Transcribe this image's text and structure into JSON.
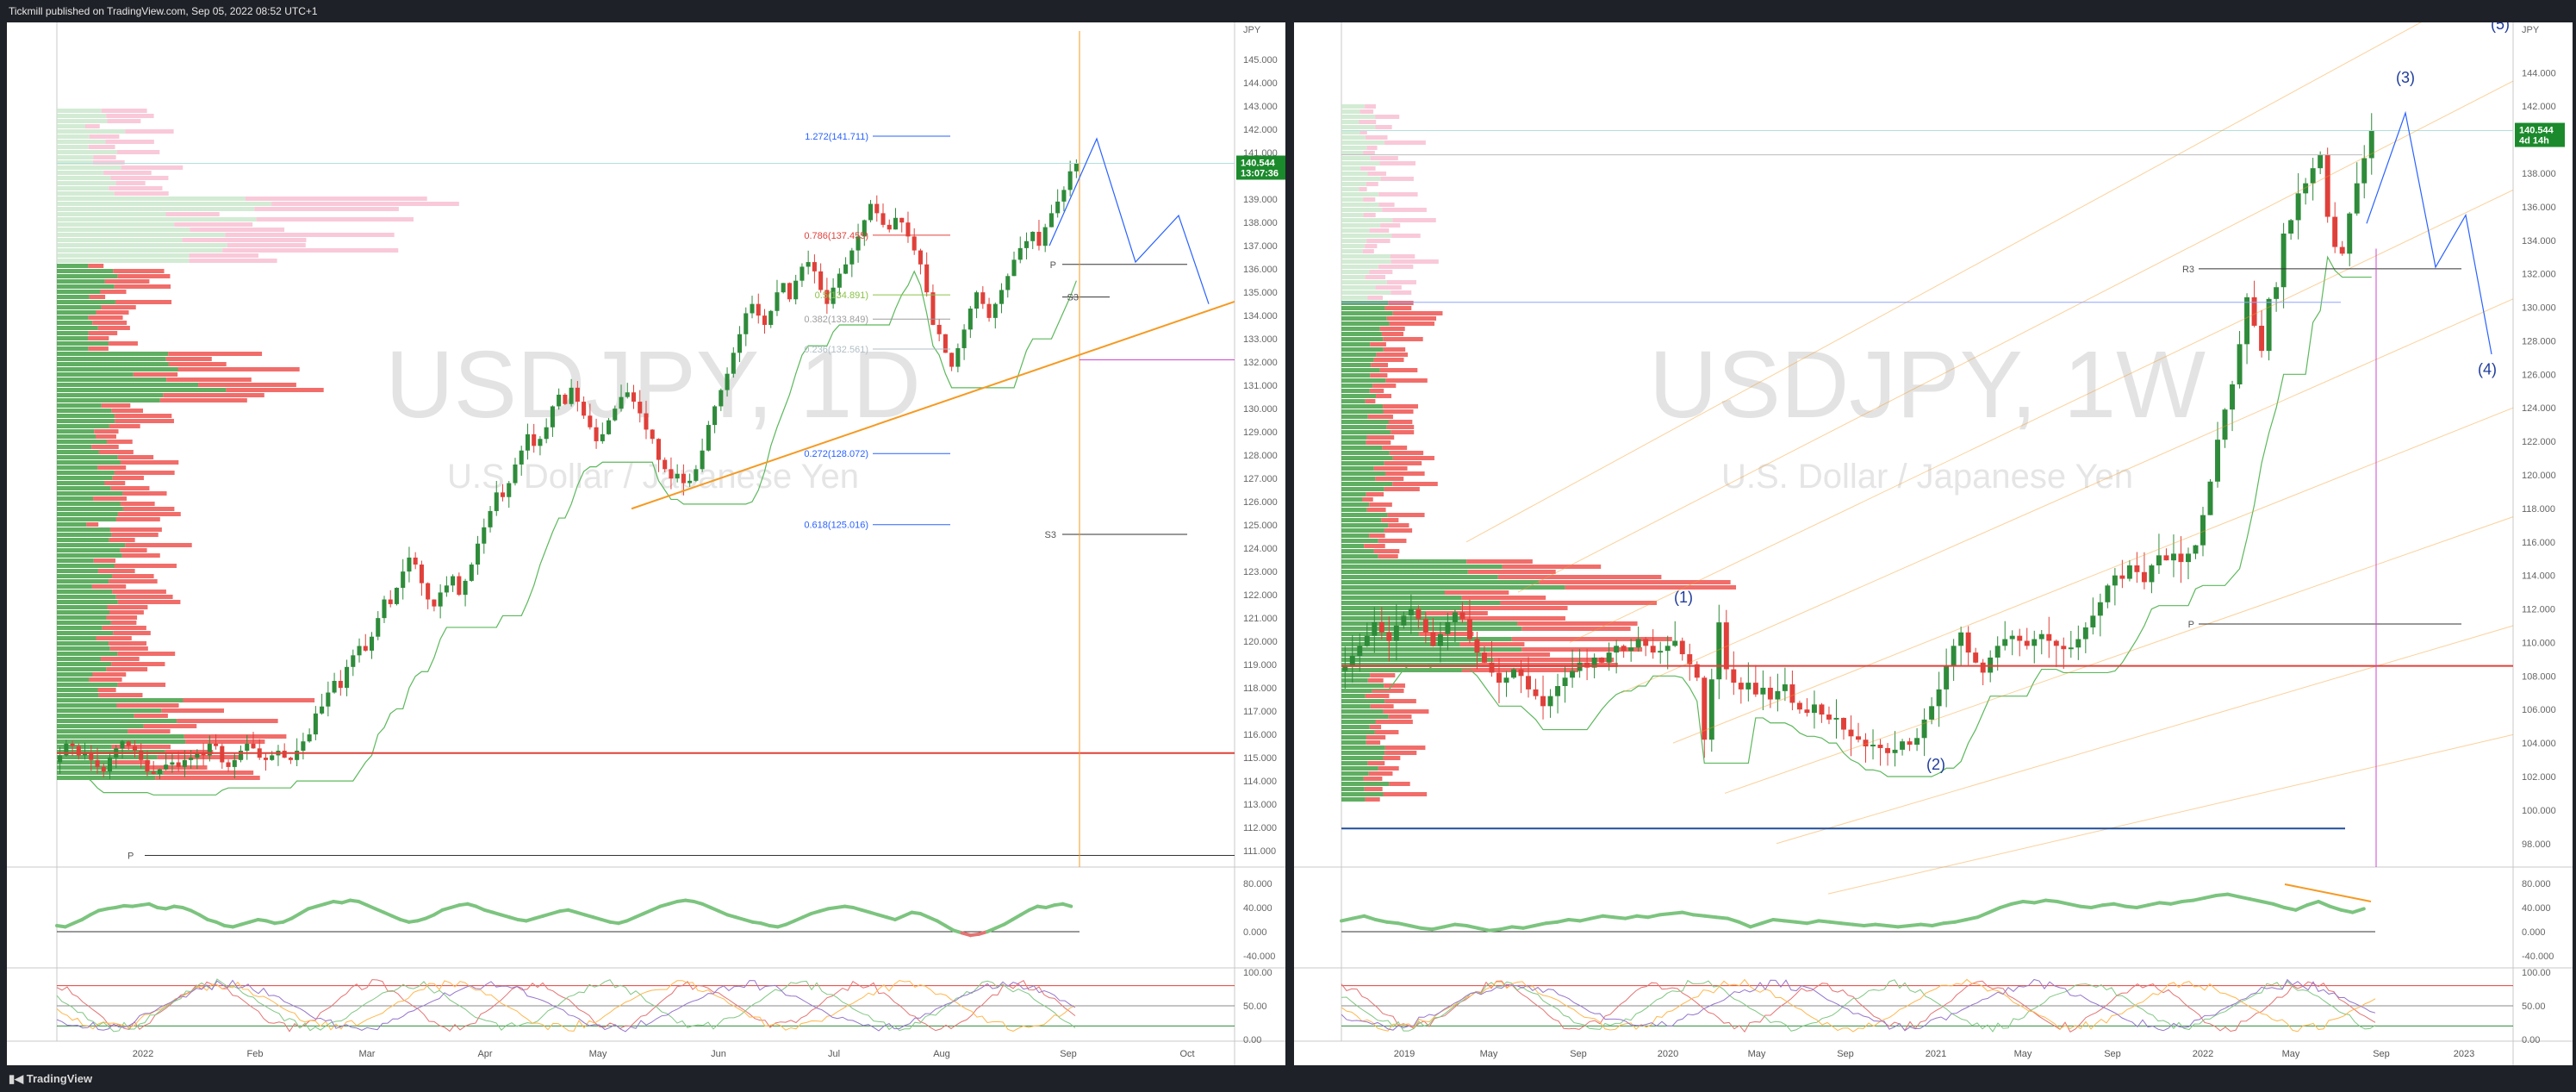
{
  "header": {
    "publish_text": "Tickmill published on TradingView.com, Sep 05, 2022 08:52 UTC+1"
  },
  "footer": {
    "logo_text": "TradingView"
  },
  "colors": {
    "up": "#2e8b3a",
    "down": "#e0403a",
    "accent_blue": "#2962ff",
    "orange": "#f59a23",
    "price_tag": "#1b8a2c"
  },
  "chart_data": [
    {
      "type": "candlestick",
      "symbol": "USDJPY, 1D",
      "description": "U.S. Dollar / Japanese Yen",
      "currency_label": "JPY",
      "last_price": "140.544",
      "countdown": "13:07:36",
      "ylim": [
        110.3,
        146.6
      ],
      "y_ticks": [
        "145.000",
        "144.000",
        "143.000",
        "142.000",
        "141.000",
        "140.000",
        "139.000",
        "138.000",
        "137.000",
        "136.000",
        "135.000",
        "134.000",
        "133.000",
        "132.000",
        "131.000",
        "130.000",
        "129.000",
        "128.000",
        "127.000",
        "126.000",
        "125.000",
        "124.000",
        "123.000",
        "122.000",
        "121.000",
        "120.000",
        "119.000",
        "118.000",
        "117.000",
        "116.000",
        "115.000",
        "114.000",
        "113.000",
        "112.000",
        "111.000"
      ],
      "x_labels": [
        "2022",
        "Feb",
        "Mar",
        "Apr",
        "May",
        "Jun",
        "Jul",
        "Aug",
        "Sep",
        "Oct"
      ],
      "fib_levels": [
        {
          "label": "1.272(141.711)",
          "value": 141.711,
          "color": "#2962ff"
        },
        {
          "label": "0.786(137.455)",
          "value": 137.455,
          "color": "#e0403a"
        },
        {
          "label": "0.5(134.891)",
          "value": 134.891,
          "color": "#8bc34a"
        },
        {
          "label": "0.382(133.849)",
          "value": 133.849,
          "color": "#9e9e9e"
        },
        {
          "label": "0.236(132.561)",
          "value": 132.561,
          "color": "#b0bec5"
        },
        {
          "label": "0.272(128.072)",
          "value": 128.072,
          "color": "#2962ff"
        },
        {
          "label": "0.618(125.016)",
          "value": 125.016,
          "color": "#2962ff"
        }
      ],
      "pivot_labels": {
        "p_upper": "P",
        "s3": "S3",
        "s3_lower": "S3",
        "p_bottom": "P"
      },
      "rsi_ticks": [
        "80.000",
        "40.000",
        "0.000",
        "-40.000"
      ],
      "stoch_ticks": [
        "100.00",
        "50.00",
        "0.00"
      ],
      "close": [
        115.1,
        115.6,
        115.5,
        115.1,
        115.2,
        114.9,
        114.6,
        114.4,
        115.0,
        115.4,
        115.7,
        115.5,
        115.3,
        114.9,
        114.4,
        114.3,
        114.5,
        114.7,
        114.8,
        114.6,
        114.9,
        115.0,
        115.2,
        115.1,
        115.6,
        115.5,
        114.8,
        114.6,
        114.9,
        115.3,
        115.6,
        115.4,
        115.0,
        114.9,
        115.1,
        115.3,
        115.0,
        114.9,
        115.3,
        115.7,
        116.0,
        116.9,
        117.2,
        117.8,
        118.3,
        118.0,
        118.9,
        119.4,
        119.8,
        119.6,
        120.2,
        121.0,
        121.8,
        121.6,
        122.3,
        123.0,
        123.6,
        123.3,
        122.5,
        121.8,
        121.5,
        122.1,
        122.4,
        122.8,
        122.0,
        122.6,
        123.3,
        124.2,
        124.9,
        125.6,
        126.4,
        126.2,
        126.8,
        127.6,
        128.2,
        128.9,
        128.4,
        128.7,
        129.2,
        130.1,
        130.6,
        130.2,
        130.9,
        130.3,
        129.7,
        129.2,
        128.6,
        128.9,
        129.5,
        130.0,
        130.5,
        130.7,
        130.3,
        129.8,
        129.1,
        128.7,
        127.8,
        127.4,
        127.0,
        127.2,
        126.8,
        126.9,
        127.4,
        128.2,
        129.3,
        130.1,
        130.8,
        131.5,
        132.4,
        133.2,
        134.1,
        134.5,
        134.0,
        133.6,
        134.2,
        135.0,
        135.4,
        134.7,
        135.5,
        136.1,
        136.3,
        135.9,
        135.1,
        134.5,
        135.2,
        135.8,
        136.2,
        136.8,
        137.4,
        138.1,
        138.8,
        138.4,
        137.9,
        137.7,
        138.2,
        138.0,
        137.4,
        136.8,
        136.2,
        135.0,
        133.6,
        133.2,
        132.4,
        131.8,
        132.6,
        133.4,
        134.3,
        135.0,
        134.5,
        133.9,
        134.5,
        135.1,
        135.7,
        136.4,
        136.9,
        137.2,
        137.6,
        137.0,
        137.8,
        138.4,
        138.9,
        139.4,
        140.2,
        140.544
      ],
      "rsi": [
        30,
        28,
        34,
        40,
        48,
        55,
        58,
        60,
        63,
        62,
        64,
        66,
        60,
        58,
        62,
        60,
        55,
        48,
        40,
        36,
        30,
        28,
        32,
        36,
        40,
        38,
        34,
        36,
        42,
        50,
        58,
        62,
        66,
        70,
        68,
        72,
        70,
        64,
        58,
        52,
        46,
        40,
        36,
        38,
        42,
        48,
        56,
        60,
        64,
        66,
        62,
        56,
        52,
        48,
        44,
        40,
        38,
        42,
        46,
        50,
        54,
        56,
        52,
        48,
        44,
        40,
        36,
        34,
        38,
        44,
        50,
        56,
        62,
        66,
        70,
        72,
        70,
        66,
        60,
        54,
        48,
        44,
        40,
        36,
        34,
        30,
        28,
        32,
        38,
        44,
        50,
        54,
        58,
        60,
        62,
        60,
        56,
        52,
        48,
        44,
        40,
        46,
        52,
        50,
        44,
        38,
        30,
        22,
        18,
        14,
        16,
        20,
        26,
        32,
        40,
        48,
        56,
        62,
        60,
        64,
        66,
        62
      ]
    },
    {
      "type": "candlestick",
      "symbol": "USDJPY, 1W",
      "description": "U.S. Dollar / Japanese Yen",
      "currency_label": "JPY",
      "last_price": "140.544",
      "countdown": "4d 14h",
      "ylim": [
        96.6,
        147.0
      ],
      "y_ticks": [
        "144.000",
        "142.000",
        "140.000",
        "138.000",
        "136.000",
        "134.000",
        "132.000",
        "130.000",
        "128.000",
        "126.000",
        "124.000",
        "122.000",
        "120.000",
        "118.000",
        "116.000",
        "114.000",
        "112.000",
        "110.000",
        "108.000",
        "106.000",
        "104.000",
        "102.000",
        "100.000",
        "98.000"
      ],
      "x_labels": [
        "2019",
        "May",
        "Sep",
        "2020",
        "May",
        "Sep",
        "2021",
        "May",
        "Sep",
        "2022",
        "May",
        "Sep",
        "2023"
      ],
      "wave_labels": [
        "(1)",
        "(2)",
        "(3)",
        "(4)",
        "(5)"
      ],
      "pivot_labels": {
        "r3": "R3",
        "p": "P"
      },
      "rsi_ticks": [
        "80.000",
        "40.000",
        "0.000",
        "-40.000"
      ],
      "stoch_ticks": [
        "100.00",
        "50.00",
        "0.00"
      ],
      "close": [
        108.6,
        109.2,
        109.8,
        110.4,
        111.2,
        110.6,
        110.1,
        111.0,
        111.6,
        112.0,
        111.4,
        110.6,
        109.8,
        110.5,
        111.2,
        111.8,
        111.4,
        110.2,
        109.4,
        108.8,
        108.2,
        107.6,
        107.9,
        108.4,
        108.0,
        107.2,
        106.8,
        106.2,
        106.8,
        107.4,
        107.9,
        108.3,
        108.8,
        108.5,
        109.1,
        108.8,
        109.4,
        109.8,
        109.5,
        109.7,
        110.2,
        109.8,
        109.4,
        109.5,
        109.8,
        110.1,
        109.3,
        108.7,
        107.9,
        104.2,
        107.8,
        111.2,
        108.4,
        107.6,
        107.2,
        107.6,
        106.9,
        107.3,
        106.6,
        107.1,
        107.5,
        106.4,
        106.0,
        105.8,
        106.3,
        105.7,
        105.4,
        105.5,
        104.8,
        104.4,
        104.2,
        103.8,
        103.9,
        103.7,
        103.4,
        103.6,
        104.1,
        103.9,
        104.3,
        105.4,
        106.2,
        107.2,
        108.6,
        109.8,
        110.6,
        109.4,
        108.8,
        108.2,
        109.1,
        109.8,
        110.2,
        110.4,
        110.1,
        109.8,
        110.2,
        110.5,
        110.1,
        109.8,
        109.6,
        109.7,
        110.2,
        110.9,
        111.6,
        112.4,
        113.4,
        114.0,
        113.8,
        114.6,
        114.2,
        113.6,
        114.6,
        115.2,
        114.9,
        115.3,
        114.8,
        115.3,
        115.8,
        117.6,
        119.6,
        122.1,
        123.9,
        125.4,
        127.8,
        130.6,
        128.9,
        127.4,
        130.5,
        131.2,
        134.4,
        135.2,
        136.8,
        137.4,
        138.3,
        139.1,
        135.4,
        133.6,
        133.2,
        135.6,
        137.4,
        138.9,
        140.544
      ],
      "rsi": [
        38,
        42,
        46,
        40,
        36,
        34,
        30,
        26,
        24,
        28,
        32,
        30,
        26,
        22,
        24,
        28,
        26,
        30,
        34,
        36,
        40,
        38,
        42,
        46,
        44,
        42,
        46,
        44,
        48,
        50,
        52,
        48,
        46,
        44,
        42,
        36,
        28,
        34,
        40,
        38,
        36,
        34,
        38,
        36,
        34,
        32,
        30,
        32,
        30,
        28,
        30,
        32,
        30,
        34,
        36,
        40,
        44,
        52,
        60,
        66,
        70,
        68,
        72,
        70,
        66,
        62,
        60,
        64,
        66,
        62,
        60,
        64,
        68,
        66,
        70,
        72,
        76,
        80,
        82,
        78,
        74,
        70,
        66,
        60,
        56,
        64,
        70,
        62,
        56,
        52,
        58
      ]
    }
  ]
}
